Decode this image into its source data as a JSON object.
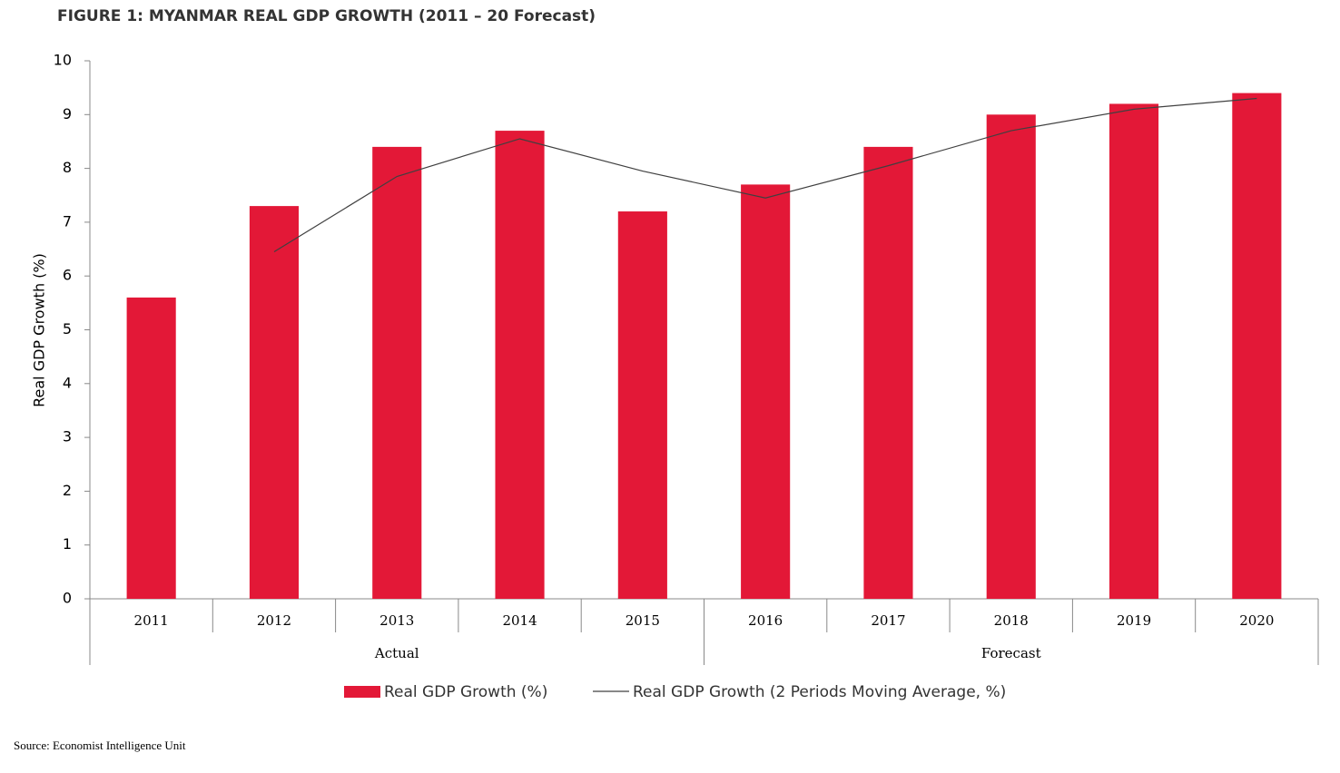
{
  "chart_data": {
    "type": "bar",
    "title": "FIGURE 1: MYANMAR REAL GDP GROWTH (2011 – 20 Forecast)",
    "y_label": "Real GDP Growth (%)",
    "source": "Source: Economist Intelligence Unit",
    "categories": [
      "2011",
      "2012",
      "2013",
      "2014",
      "2015",
      "2016",
      "2017",
      "2018",
      "2019",
      "2020"
    ],
    "groups": [
      {
        "name": "Actual",
        "size": 5
      },
      {
        "name": "Forecast",
        "size": 5
      }
    ],
    "series": [
      {
        "name": "Real GDP Growth (%)",
        "type": "bar",
        "color": "#e31837",
        "values": [
          5.6,
          7.3,
          8.4,
          8.7,
          7.2,
          7.7,
          8.4,
          9.0,
          9.2,
          9.4
        ]
      },
      {
        "name": "Real GDP Growth (2 Periods Moving Average, %)",
        "type": "line",
        "color": "#404040",
        "values": [
          null,
          6.45,
          7.85,
          8.55,
          7.95,
          7.45,
          8.05,
          8.7,
          9.1,
          9.3
        ]
      }
    ],
    "ylim": [
      0,
      10
    ],
    "yticks": [
      0,
      1,
      2,
      3,
      4,
      5,
      6,
      7,
      8,
      9,
      10
    ],
    "grid": false
  }
}
